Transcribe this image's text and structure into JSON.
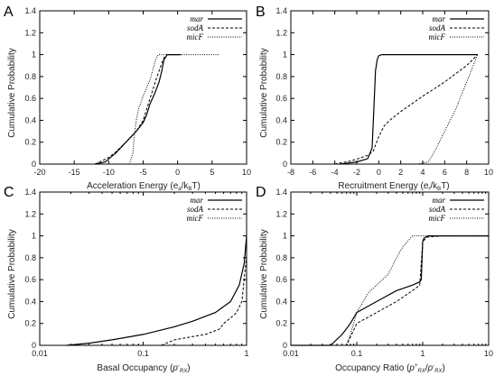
{
  "figure": {
    "y_label": "Cumulative Probability"
  },
  "chart_data": [
    {
      "type": "line",
      "panel": "A",
      "xlabel": {
        "main": "Acceleration Energy (e",
        "sub1": "a",
        "mid": "/k",
        "sub2": "B",
        "end": "T)"
      },
      "xscale": "linear",
      "xlim": [
        -20,
        10
      ],
      "xticks": [
        -20,
        -15,
        -10,
        -5,
        0,
        5,
        10
      ],
      "xtick_labels": [
        "-20",
        "-15",
        "-10",
        "-5",
        "0",
        "5",
        "10"
      ],
      "ylim": [
        0,
        1.4
      ],
      "yticks": [
        0,
        0.2,
        0.4,
        0.6,
        0.8,
        1,
        1.2,
        1.4
      ],
      "ytick_labels": [
        "0",
        "0.2",
        "0.4",
        "0.6",
        "0.8",
        "1",
        "1.2",
        "1.4"
      ],
      "legend_position": "top-right",
      "series": [
        {
          "name": "mar",
          "style": "solid",
          "x": [
            -12,
            -10.5,
            -9,
            -7.5,
            -6,
            -5,
            -4.5,
            -4,
            -3.3,
            -2.7,
            -2.3,
            -2,
            -1.5,
            0.5
          ],
          "y": [
            0,
            0.02,
            0.1,
            0.2,
            0.3,
            0.38,
            0.45,
            0.55,
            0.65,
            0.75,
            0.85,
            0.95,
            1,
            1
          ]
        },
        {
          "name": "sodA",
          "style": "dashed",
          "x": [
            -12,
            -10,
            -9,
            -7.5,
            -6,
            -5,
            -4.5,
            -3.5,
            -3,
            -2.4,
            -2,
            -1.5,
            0
          ],
          "y": [
            0,
            0.06,
            0.11,
            0.2,
            0.3,
            0.4,
            0.5,
            0.7,
            0.8,
            0.9,
            0.97,
            1,
            1
          ]
        },
        {
          "name": "micF",
          "style": "dotted",
          "x": [
            -9,
            -7,
            -6.5,
            -6.3,
            -6,
            -5.7,
            -5,
            -4,
            -3.2,
            -2.8,
            6
          ],
          "y": [
            0,
            0,
            0.1,
            0.25,
            0.4,
            0.5,
            0.62,
            0.77,
            0.95,
            1,
            1
          ]
        }
      ]
    },
    {
      "type": "line",
      "panel": "B",
      "xlabel": {
        "main": "Recruitment Energy (e",
        "sub1": "r",
        "mid": "/k",
        "sub2": "B",
        "end": "T)"
      },
      "xscale": "linear",
      "xlim": [
        -8,
        10
      ],
      "xticks": [
        -8,
        -6,
        -4,
        -2,
        0,
        2,
        4,
        6,
        8,
        10
      ],
      "xtick_labels": [
        "-8",
        "-6",
        "-4",
        "-2",
        "0",
        "2",
        "4",
        "6",
        "8",
        "10"
      ],
      "ylim": [
        0,
        1.4
      ],
      "yticks": [
        0,
        0.2,
        0.4,
        0.6,
        0.8,
        1,
        1.2,
        1.4
      ],
      "ytick_labels": [
        "0",
        "0.2",
        "0.4",
        "0.6",
        "0.8",
        "1",
        "1.2",
        "1.4"
      ],
      "legend_position": "top-right",
      "series": [
        {
          "name": "mar",
          "style": "solid",
          "x": [
            -3.5,
            -2,
            -1,
            -0.6,
            -0.45,
            -0.3,
            -0.15,
            0,
            0.3,
            9
          ],
          "y": [
            0,
            0.02,
            0.05,
            0.15,
            0.5,
            0.85,
            0.95,
            0.99,
            1,
            1
          ]
        },
        {
          "name": "sodA",
          "style": "dashed",
          "x": [
            -4,
            -2.5,
            -1,
            -0.5,
            0,
            0.5,
            1,
            2,
            4,
            6,
            8,
            9
          ],
          "y": [
            0,
            0.03,
            0.08,
            0.12,
            0.25,
            0.35,
            0.4,
            0.48,
            0.62,
            0.75,
            0.9,
            1
          ]
        },
        {
          "name": "micF",
          "style": "dotted",
          "x": [
            3.5,
            4.5,
            5,
            5.5,
            6,
            7,
            8,
            9
          ],
          "y": [
            0,
            0.02,
            0.1,
            0.2,
            0.3,
            0.5,
            0.75,
            1
          ]
        }
      ]
    },
    {
      "type": "line",
      "panel": "C",
      "xlabel": {
        "main": "Basal Occupancy (",
        "sym": "p",
        "sup": "-",
        "sub": "RX",
        "end": ")"
      },
      "xscale": "log",
      "xlim": [
        0.01,
        1
      ],
      "xticks": [
        0.01,
        0.1,
        1
      ],
      "xtick_labels": [
        "0.01",
        "0.1",
        "1"
      ],
      "ylim": [
        0,
        1.4
      ],
      "yticks": [
        0,
        0.2,
        0.4,
        0.6,
        0.8,
        1,
        1.2,
        1.4
      ],
      "ytick_labels": [
        "0",
        "0.2",
        "0.4",
        "0.6",
        "0.8",
        "1",
        "1.2",
        "1.4"
      ],
      "legend_position": "top-right",
      "series": [
        {
          "name": "mar",
          "style": "solid",
          "x": [
            0.018,
            0.03,
            0.05,
            0.1,
            0.2,
            0.3,
            0.5,
            0.7,
            0.85,
            0.95,
            1
          ],
          "y": [
            0,
            0.02,
            0.05,
            0.1,
            0.17,
            0.22,
            0.3,
            0.4,
            0.55,
            0.75,
            1
          ]
        },
        {
          "name": "sodA",
          "style": "dashed",
          "x": [
            0.15,
            0.2,
            0.3,
            0.4,
            0.55,
            0.6,
            0.7,
            0.8,
            0.9,
            0.97,
            1
          ],
          "y": [
            0,
            0.05,
            0.08,
            0.1,
            0.15,
            0.2,
            0.25,
            0.3,
            0.4,
            0.7,
            0.8
          ]
        },
        {
          "name": "micF",
          "style": "dotted",
          "x": [
            0.999,
            1,
            1
          ],
          "y": [
            0,
            0.5,
            1
          ]
        }
      ]
    },
    {
      "type": "line",
      "panel": "D",
      "xlabel": {
        "main": "Occupancy Ratio (",
        "sym1": "p",
        "sup1": "+",
        "sub1": "RX",
        "slash": "/",
        "sym2": "p",
        "sup2": "-",
        "sub2": "RX",
        "end": ")"
      },
      "xscale": "log",
      "xlim": [
        0.01,
        10
      ],
      "xticks": [
        0.01,
        0.1,
        1,
        10
      ],
      "xtick_labels": [
        "0.01",
        "0.1",
        "1",
        "10"
      ],
      "ylim": [
        0,
        1.4
      ],
      "yticks": [
        0,
        0.2,
        0.4,
        0.6,
        0.8,
        1,
        1.2,
        1.4
      ],
      "ytick_labels": [
        "0",
        "0.2",
        "0.4",
        "0.6",
        "0.8",
        "1",
        "1.2",
        "1.4"
      ],
      "legend_position": "top-right",
      "series": [
        {
          "name": "mar",
          "style": "solid",
          "x": [
            0.01,
            0.04,
            0.06,
            0.08,
            0.1,
            0.2,
            0.4,
            0.7,
            0.9,
            0.95,
            1,
            1.05,
            1.2,
            10
          ],
          "y": [
            0,
            0,
            0.1,
            0.2,
            0.3,
            0.4,
            0.5,
            0.55,
            0.58,
            0.6,
            0.95,
            0.98,
            1,
            1
          ]
        },
        {
          "name": "sodA",
          "style": "dashed",
          "x": [
            0.01,
            0.07,
            0.1,
            0.2,
            0.4,
            0.7,
            0.9,
            1,
            1.2,
            2,
            10
          ],
          "y": [
            0,
            0,
            0.2,
            0.3,
            0.4,
            0.5,
            0.55,
            0.95,
            0.99,
            1,
            1
          ]
        },
        {
          "name": "micF",
          "style": "dotted",
          "x": [
            0.01,
            0.07,
            0.08,
            0.1,
            0.15,
            0.2,
            0.3,
            0.4,
            0.5,
            0.7,
            1,
            10
          ],
          "y": [
            0,
            0,
            0.1,
            0.3,
            0.48,
            0.55,
            0.65,
            0.8,
            0.9,
            1,
            1,
            1
          ]
        }
      ]
    }
  ]
}
